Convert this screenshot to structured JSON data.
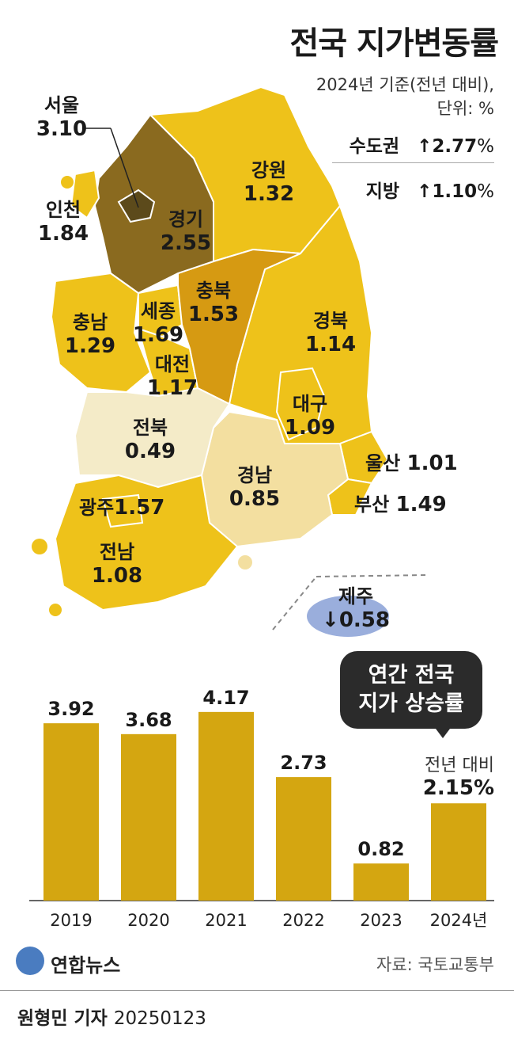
{
  "header": {
    "title": "전국 지가변동률",
    "basis_line1": "2024년 기준(전년 대비),",
    "basis_line2": "단위: %"
  },
  "summary": [
    {
      "label": "수도권",
      "arrow": "↑",
      "value": "2.77",
      "unit": "%"
    },
    {
      "label": "지방",
      "arrow": "↑",
      "value": "1.10",
      "unit": "%"
    }
  ],
  "regions": [
    {
      "name": "서울",
      "value": "3.10"
    },
    {
      "name": "인천",
      "value": "1.84"
    },
    {
      "name": "경기",
      "value": "2.55"
    },
    {
      "name": "강원",
      "value": "1.32"
    },
    {
      "name": "충남",
      "value": "1.29"
    },
    {
      "name": "세종",
      "value": "1.69"
    },
    {
      "name": "충북",
      "value": "1.53"
    },
    {
      "name": "대전",
      "value": "1.17"
    },
    {
      "name": "경북",
      "value": "1.14"
    },
    {
      "name": "대구",
      "value": "1.09"
    },
    {
      "name": "전북",
      "value": "0.49"
    },
    {
      "name": "경남",
      "value": "0.85"
    },
    {
      "name": "울산",
      "value": "1.01"
    },
    {
      "name": "부산",
      "value": "1.49"
    },
    {
      "name": "광주",
      "value": "1.57"
    },
    {
      "name": "전남",
      "value": "1.08"
    },
    {
      "name": "제주",
      "value": "↓0.58"
    }
  ],
  "colors": {
    "seoul": "#5c4a1b",
    "gyeonggi": "#8a6a1f",
    "chungbuk": "#d69a12",
    "default_region": "#eec21a",
    "jeonbuk": "#f4ebc8",
    "gyeongnam": "#f3dfa0",
    "jeju": "#9aaedc",
    "bar": "#d4a611",
    "bubble": "#2b2b2b"
  },
  "chart_data": {
    "type": "bar",
    "title": "연간 전국 지가 상승률",
    "categories": [
      "2019",
      "2020",
      "2021",
      "2022",
      "2023",
      "2024년"
    ],
    "values": [
      3.92,
      3.68,
      4.17,
      2.73,
      0.82,
      2.15
    ],
    "value_labels": [
      "3.92",
      "3.68",
      "4.17",
      "2.73",
      "0.82",
      ""
    ],
    "ylim": [
      0,
      4.5
    ],
    "grid": false,
    "legend": "none"
  },
  "callout": {
    "line1": "연간 전국",
    "line2": "지가 상승률",
    "yoy_label": "전년 대비",
    "yoy_value": "2.15%"
  },
  "footer": {
    "logo": "연합뉴스",
    "source": "자료: 국토교통부",
    "reporter": "원형민 기자",
    "date": "20250123"
  }
}
